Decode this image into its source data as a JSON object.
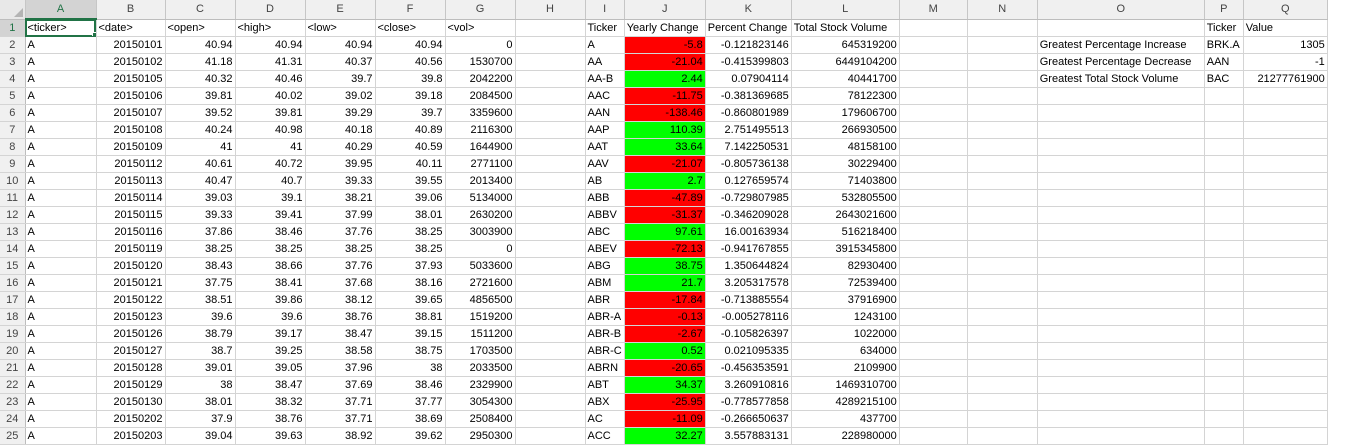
{
  "column_headers": [
    "A",
    "B",
    "C",
    "D",
    "E",
    "F",
    "G",
    "H",
    "I",
    "J",
    "K",
    "L",
    "M",
    "N",
    "O",
    "P",
    "Q"
  ],
  "colors": {
    "positive_fill": "#00ff00",
    "negative_fill": "#ff0000",
    "selection": "#217346"
  },
  "rows": [
    [
      "<ticker>",
      "<date>",
      "<open>",
      "<high>",
      "<low>",
      "<close>",
      "<vol>",
      "",
      "Ticker",
      "Yearly Change",
      "Percent Change",
      "Total Stock Volume",
      "",
      "",
      "",
      "Ticker",
      "Value"
    ],
    [
      "A",
      "20150101",
      "40.94",
      "40.94",
      "40.94",
      "40.94",
      "0",
      "",
      "A",
      "-5.8",
      "-0.121823146",
      "645319200",
      "",
      "",
      "Greatest Percentage Increase",
      "BRK.A",
      "1305"
    ],
    [
      "A",
      "20150102",
      "41.18",
      "41.31",
      "40.37",
      "40.56",
      "1530700",
      "",
      "AA",
      "-21.04",
      "-0.415399803",
      "6449104200",
      "",
      "",
      "Greatest Percentage Decrease",
      "AAN",
      "-1"
    ],
    [
      "A",
      "20150105",
      "40.32",
      "40.46",
      "39.7",
      "39.8",
      "2042200",
      "",
      "AA-B",
      "2.44",
      "0.07904114",
      "40441700",
      "",
      "",
      "Greatest Total Stock Volume",
      "BAC",
      "21277761900"
    ],
    [
      "A",
      "20150106",
      "39.81",
      "40.02",
      "39.02",
      "39.18",
      "2084500",
      "",
      "AAC",
      "-11.75",
      "-0.381369685",
      "78122300",
      "",
      "",
      "",
      "",
      ""
    ],
    [
      "A",
      "20150107",
      "39.52",
      "39.81",
      "39.29",
      "39.7",
      "3359600",
      "",
      "AAN",
      "-138.46",
      "-0.860801989",
      "179606700",
      "",
      "",
      "",
      "",
      ""
    ],
    [
      "A",
      "20150108",
      "40.24",
      "40.98",
      "40.18",
      "40.89",
      "2116300",
      "",
      "AAP",
      "110.39",
      "2.751495513",
      "266930500",
      "",
      "",
      "",
      "",
      ""
    ],
    [
      "A",
      "20150109",
      "41",
      "41",
      "40.29",
      "40.59",
      "1644900",
      "",
      "AAT",
      "33.64",
      "7.142250531",
      "48158100",
      "",
      "",
      "",
      "",
      ""
    ],
    [
      "A",
      "20150112",
      "40.61",
      "40.72",
      "39.95",
      "40.11",
      "2771100",
      "",
      "AAV",
      "-21.07",
      "-0.805736138",
      "30229400",
      "",
      "",
      "",
      "",
      ""
    ],
    [
      "A",
      "20150113",
      "40.47",
      "40.7",
      "39.33",
      "39.55",
      "2013400",
      "",
      "AB",
      "2.7",
      "0.127659574",
      "71403800",
      "",
      "",
      "",
      "",
      ""
    ],
    [
      "A",
      "20150114",
      "39.03",
      "39.1",
      "38.21",
      "39.06",
      "5134000",
      "",
      "ABB",
      "-47.89",
      "-0.729807985",
      "532805500",
      "",
      "",
      "",
      "",
      ""
    ],
    [
      "A",
      "20150115",
      "39.33",
      "39.41",
      "37.99",
      "38.01",
      "2630200",
      "",
      "ABBV",
      "-31.37",
      "-0.346209028",
      "2643021600",
      "",
      "",
      "",
      "",
      ""
    ],
    [
      "A",
      "20150116",
      "37.86",
      "38.46",
      "37.76",
      "38.25",
      "3003900",
      "",
      "ABC",
      "97.61",
      "16.00163934",
      "516218400",
      "",
      "",
      "",
      "",
      ""
    ],
    [
      "A",
      "20150119",
      "38.25",
      "38.25",
      "38.25",
      "38.25",
      "0",
      "",
      "ABEV",
      "-72.13",
      "-0.941767855",
      "3915345800",
      "",
      "",
      "",
      "",
      ""
    ],
    [
      "A",
      "20150120",
      "38.43",
      "38.66",
      "37.76",
      "37.93",
      "5033600",
      "",
      "ABG",
      "38.75",
      "1.350644824",
      "82930400",
      "",
      "",
      "",
      "",
      ""
    ],
    [
      "A",
      "20150121",
      "37.75",
      "38.41",
      "37.68",
      "38.16",
      "2721600",
      "",
      "ABM",
      "21.7",
      "3.205317578",
      "72539400",
      "",
      "",
      "",
      "",
      ""
    ],
    [
      "A",
      "20150122",
      "38.51",
      "39.86",
      "38.12",
      "39.65",
      "4856500",
      "",
      "ABR",
      "-17.84",
      "-0.713885554",
      "37916900",
      "",
      "",
      "",
      "",
      ""
    ],
    [
      "A",
      "20150123",
      "39.6",
      "39.6",
      "38.76",
      "38.81",
      "1519200",
      "",
      "ABR-A",
      "-0.13",
      "-0.005278116",
      "1243100",
      "",
      "",
      "",
      "",
      ""
    ],
    [
      "A",
      "20150126",
      "38.79",
      "39.17",
      "38.47",
      "39.15",
      "1511200",
      "",
      "ABR-B",
      "-2.67",
      "-0.105826397",
      "1022000",
      "",
      "",
      "",
      "",
      ""
    ],
    [
      "A",
      "20150127",
      "38.7",
      "39.25",
      "38.58",
      "38.75",
      "1703500",
      "",
      "ABR-C",
      "0.52",
      "0.021095335",
      "634000",
      "",
      "",
      "",
      "",
      ""
    ],
    [
      "A",
      "20150128",
      "39.01",
      "39.05",
      "37.96",
      "38",
      "2033500",
      "",
      "ABRN",
      "-20.65",
      "-0.456353591",
      "2109900",
      "",
      "",
      "",
      "",
      ""
    ],
    [
      "A",
      "20150129",
      "38",
      "38.47",
      "37.69",
      "38.46",
      "2329900",
      "",
      "ABT",
      "34.37",
      "3.260910816",
      "1469310700",
      "",
      "",
      "",
      "",
      ""
    ],
    [
      "A",
      "20150130",
      "38.01",
      "38.32",
      "37.71",
      "37.77",
      "3054300",
      "",
      "ABX",
      "-25.95",
      "-0.778577858",
      "4289215100",
      "",
      "",
      "",
      "",
      ""
    ],
    [
      "A",
      "20150202",
      "37.9",
      "38.76",
      "37.71",
      "38.69",
      "2508400",
      "",
      "AC",
      "-11.09",
      "-0.266650637",
      "437700",
      "",
      "",
      "",
      "",
      ""
    ],
    [
      "A",
      "20150203",
      "39.04",
      "39.63",
      "38.92",
      "39.62",
      "2950300",
      "",
      "ACC",
      "32.27",
      "3.557883131",
      "228980000",
      "",
      "",
      "",
      "",
      ""
    ]
  ]
}
